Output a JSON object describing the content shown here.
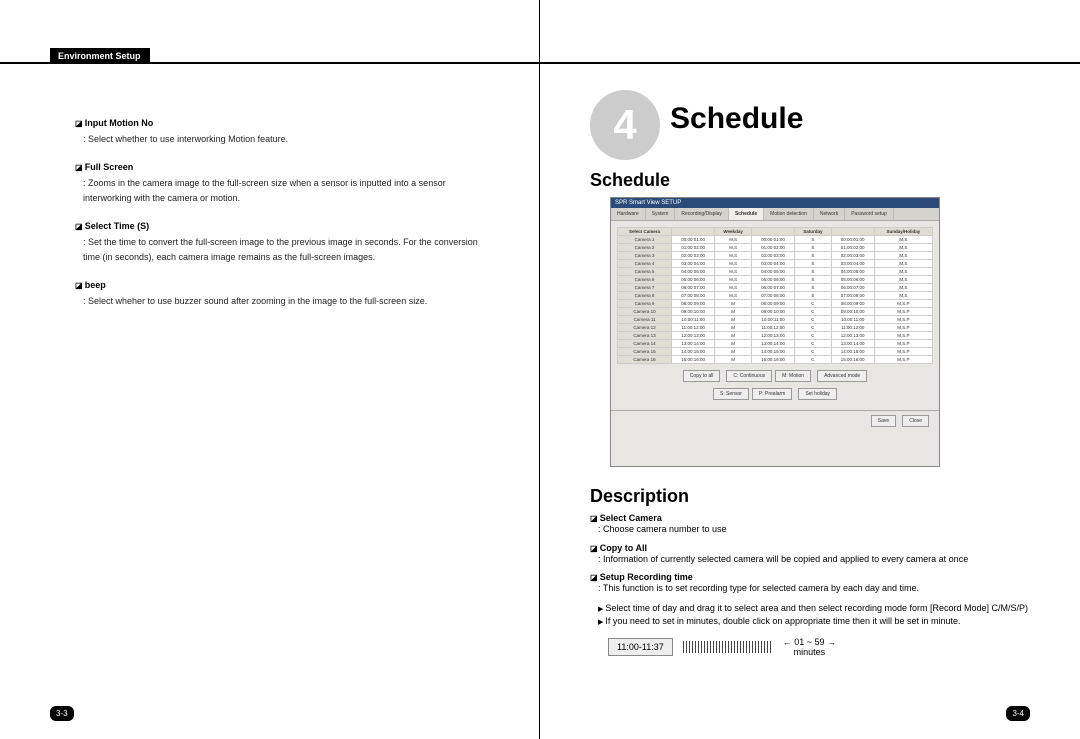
{
  "header": {
    "title": "Environment Setup"
  },
  "left": {
    "items": [
      {
        "title": "Input Motion No",
        "desc": "Select whether to use interworking Motion feature."
      },
      {
        "title": "Full Screen",
        "desc": "Zooms in the camera image to the full-screen size when a sensor is inputted into a sensor interworking with the camera or motion."
      },
      {
        "title": "Select Time (S)",
        "desc": "Set the time to convert the full-screen image to the previous image in seconds. For the conversion time (in seconds), each camera image remains as the full-screen images."
      },
      {
        "title": "beep",
        "desc": "Select wheher to use buzzer sound after zooming in the image to the full-screen size."
      }
    ],
    "pagenum": "3-3"
  },
  "right": {
    "chapter_num": "4",
    "chapter_title": "Schedule",
    "sched_title": "Schedule",
    "desc_title": "Description",
    "screenshot": {
      "window_title": "SPR Smart View SETUP",
      "tabs": [
        "Hardware",
        "System",
        "Recording/Display",
        "Schedule",
        "Motion detection",
        "Network",
        "Password setup"
      ],
      "active_tab": 3,
      "columns": [
        "Select Camera",
        "",
        "Weekday",
        "",
        "Saturday",
        "",
        "Sunday/Holiday"
      ],
      "cam_label_prefix": "Camera ",
      "rows": [
        [
          "00:00:01:00",
          "M,S",
          "00:00:01:00",
          "S",
          "00:00:01:00",
          "M,S"
        ],
        [
          "01:00:02:00",
          "M,S",
          "01:00:02:00",
          "S",
          "01:00:02:00",
          "M,S"
        ],
        [
          "02:00:03:00",
          "M,S",
          "02:00:03:00",
          "S",
          "02:00:03:00",
          "M,S"
        ],
        [
          "03:00:04:00",
          "M,S",
          "03:00:04:00",
          "S",
          "03:00:04:00",
          "M,S"
        ],
        [
          "04:00:05:00",
          "M,S",
          "04:00:05:00",
          "S",
          "04:00:05:00",
          "M,S"
        ],
        [
          "05:00:06:00",
          "M,S",
          "05:00:06:00",
          "S",
          "05:00:06:00",
          "M,S"
        ],
        [
          "06:00:07:00",
          "M,S",
          "06:00:07:00",
          "S",
          "06:00:07:00",
          "M,S"
        ],
        [
          "07:00:08:00",
          "M,S",
          "07:00:08:00",
          "S",
          "07:00:08:00",
          "M,S"
        ],
        [
          "08:00:09:00",
          "M",
          "08:00:09:00",
          "C",
          "08:00:09:00",
          "M,S,P"
        ],
        [
          "09:00:10:00",
          "M",
          "09:00:10:00",
          "C",
          "09:00:10:00",
          "M,S,P"
        ],
        [
          "10:00:11:00",
          "M",
          "10:00:11:00",
          "C",
          "10:00:11:00",
          "M,S,P"
        ],
        [
          "11:00:12:00",
          "M",
          "11:00:12:00",
          "C",
          "11:00:12:00",
          "M,S,P"
        ],
        [
          "12:00:13:00",
          "M",
          "12:00:13:00",
          "C",
          "12:00:13:00",
          "M,S,P"
        ],
        [
          "13:00:14:00",
          "M",
          "13:00:14:00",
          "C",
          "13:00:14:00",
          "M,S,P"
        ],
        [
          "14:00:15:00",
          "M",
          "14:00:15:00",
          "C",
          "14:00:15:00",
          "M,S,P"
        ],
        [
          "15:00:16:00",
          "M",
          "15:00:16:00",
          "C",
          "15:00:16:00",
          "M,S,P"
        ]
      ],
      "btn_copy": "Copy to all",
      "legend": [
        "C: Continuous",
        "M: Motion",
        "S: Sensor",
        "P: Prealarm"
      ],
      "btn_adv": "Advanced mode",
      "btn_holiday": "Set holiday",
      "btn_save": "Save",
      "btn_close": "Close"
    },
    "desc_items": [
      {
        "title": "Select Camera",
        "desc": ": Choose camera number to use"
      },
      {
        "title": "Copy to All",
        "desc": ": Information of currently selected camera will be copied and applied to every camera at once"
      },
      {
        "title": "Setup Recording time",
        "desc": ": This function is to set recording type for selected camera by each day and time."
      }
    ],
    "bullets": [
      "Select time of day and drag it to select area and then select recording mode form [Record Mode] C/M/S/P)",
      "If you need to set in minutes, double click on appropriate time then it will be set in minute."
    ],
    "time_illus": {
      "range": "11:00-11:37",
      "scale": "← 01 ~ 59 →",
      "minutes": "minutes"
    },
    "pagenum": "3-4"
  }
}
